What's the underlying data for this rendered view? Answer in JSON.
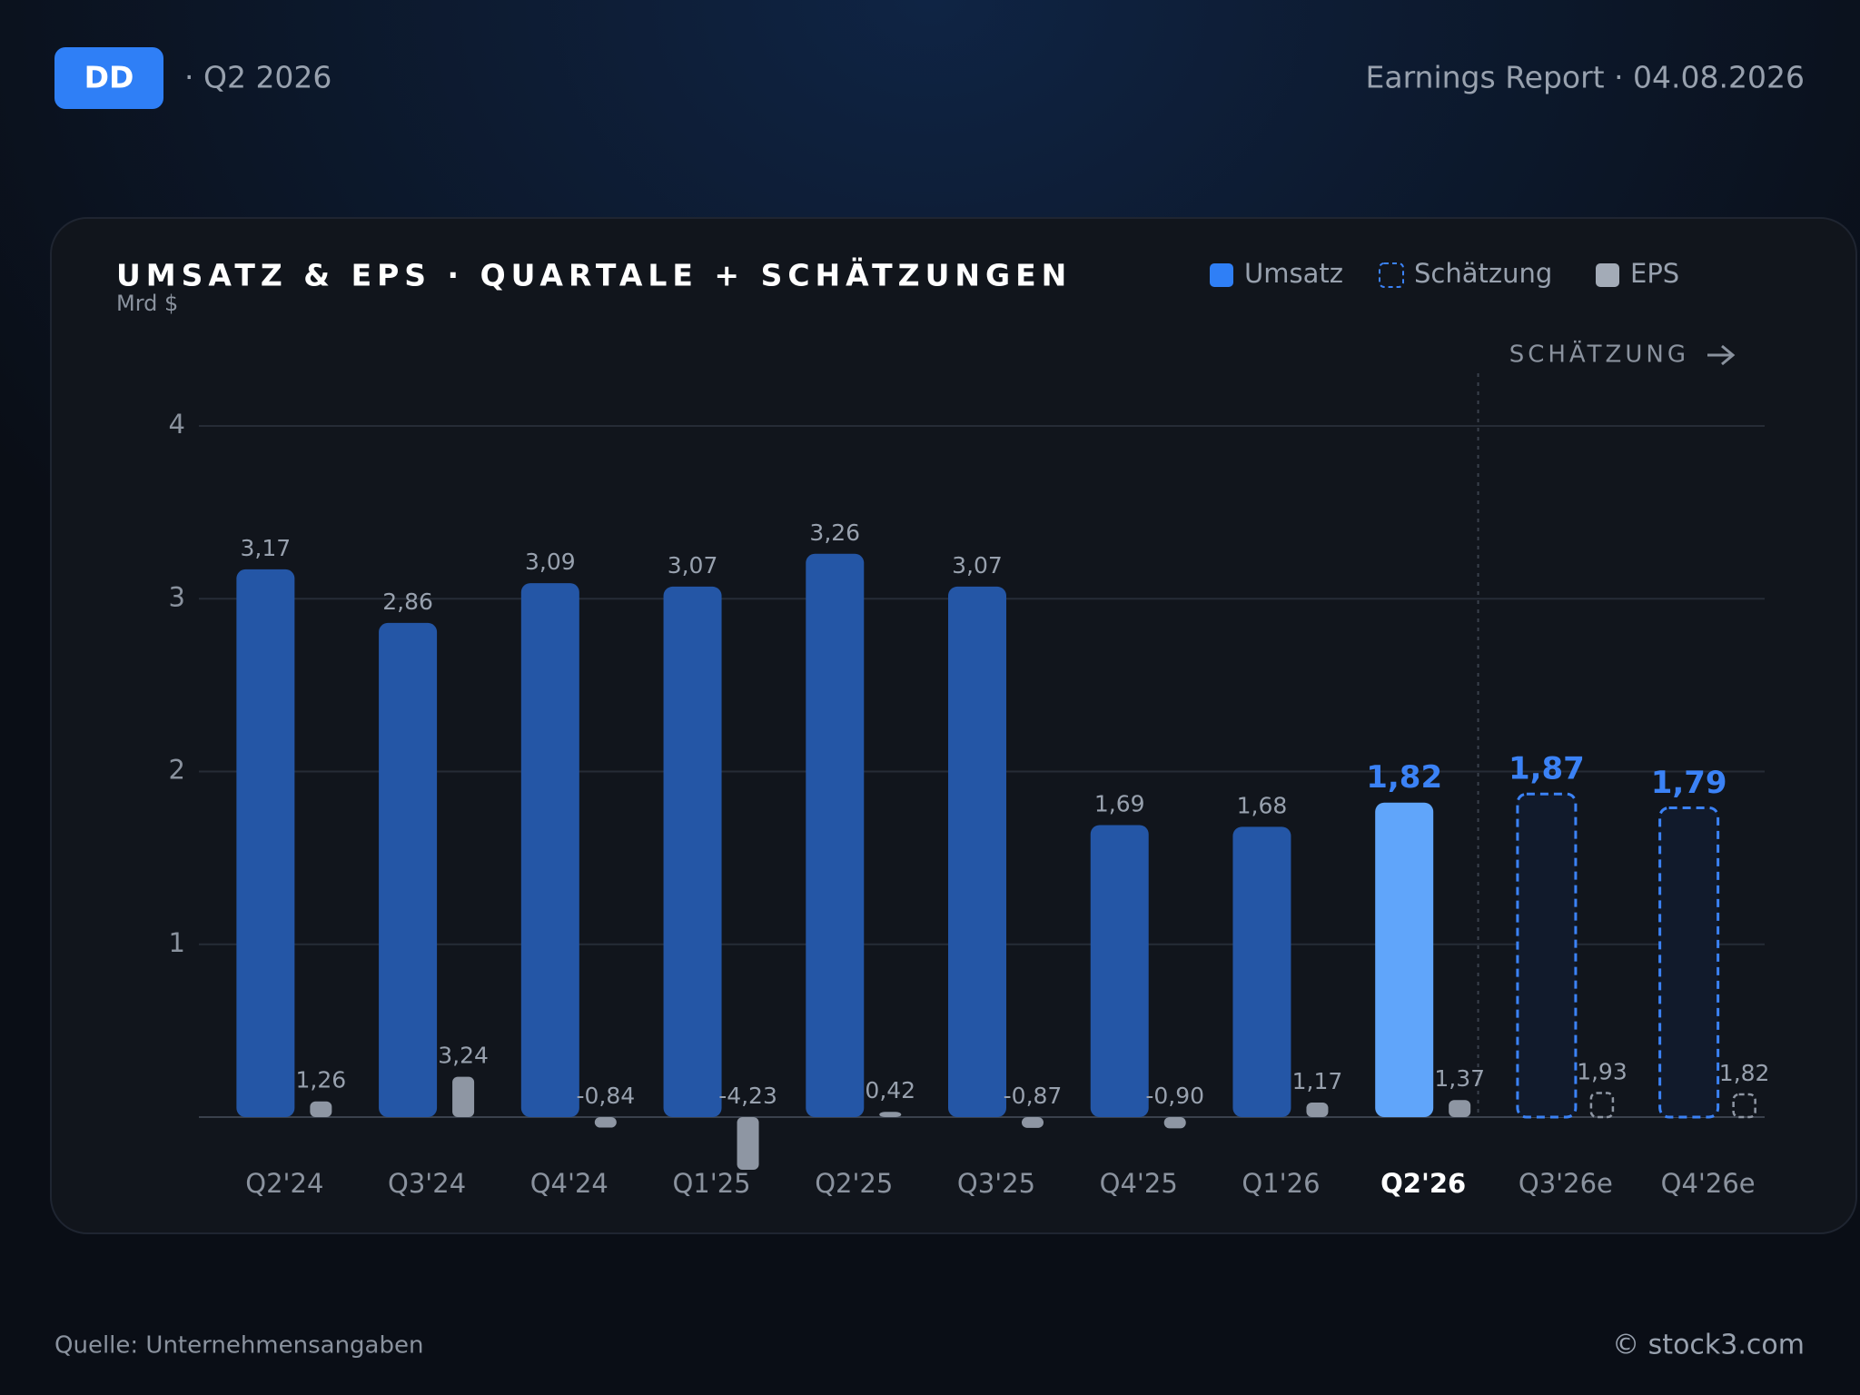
{
  "header": {
    "ticker": "DD",
    "period": "· Q2 2026",
    "report": "Earnings Report · 04.08.2026"
  },
  "chart_data": {
    "type": "bar",
    "title": "UMSATZ & EPS · QUARTALE + SCHÄTZUNGEN",
    "y_label": "Mrd $",
    "annotation": "SCHÄTZUNG",
    "categories": [
      "Q2'24",
      "Q3'24",
      "Q4'24",
      "Q1'25",
      "Q2'25",
      "Q3'25",
      "Q4'25",
      "Q1'26",
      "Q2'26",
      "Q3'26e",
      "Q4'26e"
    ],
    "highlight": "Q2'26",
    "ylim": [
      0,
      4
    ],
    "yticks": [
      1,
      2,
      3,
      4
    ],
    "grid": true,
    "series": [
      {
        "name": "Umsatz",
        "color": "#2456a6",
        "values": [
          3.17,
          2.86,
          3.09,
          3.07,
          3.26,
          3.07,
          1.69,
          1.68,
          1.82,
          null,
          null
        ],
        "value_labels": [
          "3,17",
          "2,86",
          "3,09",
          "3,07",
          "3,26",
          "3,07",
          "1,69",
          "1,68",
          "1,82",
          null,
          null
        ]
      },
      {
        "name": "Schätzung",
        "color": "#3b82f6",
        "values": [
          null,
          null,
          null,
          null,
          null,
          null,
          null,
          null,
          null,
          1.87,
          1.79
        ],
        "value_labels": [
          null,
          null,
          null,
          null,
          null,
          null,
          null,
          null,
          null,
          "1,87",
          "1,79"
        ]
      },
      {
        "name": "EPS",
        "color": "#8e96a3",
        "values": [
          1.26,
          3.24,
          -0.84,
          -4.23,
          0.42,
          -0.87,
          -0.9,
          1.17,
          1.37,
          1.93,
          1.82
        ],
        "value_labels": [
          "1,26",
          "3,24",
          "-0,84",
          "-4,23",
          "0,42",
          "-0,87",
          "-0,90",
          "1,17",
          "1,37",
          "1,93",
          "1,82"
        ]
      }
    ]
  },
  "footer": {
    "source": "Quelle: Unternehmensangaben",
    "brand": "© stock3.com"
  }
}
